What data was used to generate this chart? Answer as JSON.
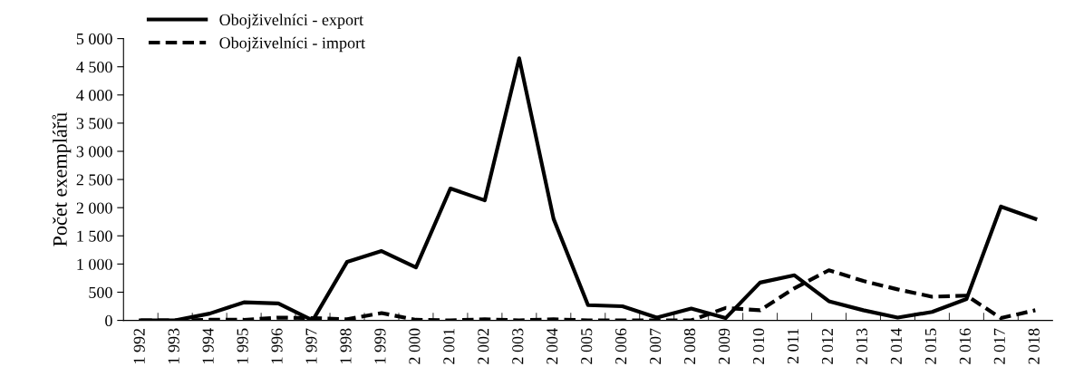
{
  "chart_data": {
    "type": "line",
    "ylabel": "Počet exemplářů",
    "categories": [
      "1 992",
      "1 993",
      "1 994",
      "1 995",
      "1 996",
      "1 997",
      "1 998",
      "1 999",
      "2 000",
      "2 001",
      "2 002",
      "2 003",
      "2 004",
      "2 005",
      "2 006",
      "2 007",
      "2 008",
      "2 009",
      "2 010",
      "2 011",
      "2 012",
      "2 013",
      "2 014",
      "2 015",
      "2 016",
      "2 017",
      "2 018"
    ],
    "series": [
      {
        "name": "Obojživelníci - export",
        "color": "#000000",
        "line_style": "solid",
        "values": [
          0,
          0,
          120,
          320,
          300,
          0,
          1040,
          1230,
          940,
          2340,
          2130,
          4650,
          1800,
          270,
          250,
          50,
          210,
          40,
          670,
          800,
          340,
          180,
          50,
          150,
          380,
          2020,
          1800
        ]
      },
      {
        "name": "Obojživelníci - import",
        "color": "#000000",
        "line_style": "dashed",
        "values": [
          0,
          0,
          10,
          10,
          50,
          40,
          20,
          130,
          10,
          0,
          20,
          0,
          20,
          0,
          0,
          0,
          0,
          220,
          180,
          570,
          890,
          700,
          550,
          420,
          440,
          40,
          180
        ]
      }
    ],
    "ylim": [
      0,
      5000
    ],
    "yticks": [
      {
        "value": 0,
        "label": "0"
      },
      {
        "value": 500,
        "label": "500"
      },
      {
        "value": 1000,
        "label": "1 000"
      },
      {
        "value": 1500,
        "label": "1 500"
      },
      {
        "value": 2000,
        "label": "2 000"
      },
      {
        "value": 2500,
        "label": "2 500"
      },
      {
        "value": 3000,
        "label": "3 000"
      },
      {
        "value": 3500,
        "label": "3 500"
      },
      {
        "value": 4000,
        "label": "4 000"
      },
      {
        "value": 4500,
        "label": "4 500"
      },
      {
        "value": 5000,
        "label": "5 000"
      }
    ],
    "grid": false,
    "legend": "top left",
    "marker": "none"
  }
}
